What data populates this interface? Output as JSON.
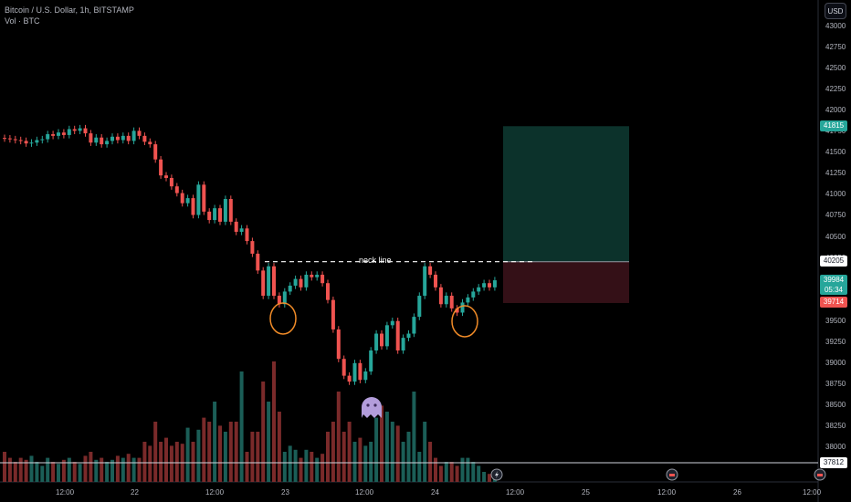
{
  "legend": {
    "title": "Bitcoin / U.S. Dollar, 1h, BITSTAMP",
    "volume": "Vol · BTC"
  },
  "currency": "USD",
  "annotation": "neck line",
  "colors": {
    "up": "#26a69a",
    "down": "#ef5350",
    "vol_up": "#1b5e57",
    "vol_down": "#7a2a2a",
    "target": "#0e3b33",
    "stop": "#3a1219",
    "marker": "#f28c28",
    "ghost": "#b39ddb"
  },
  "price_tags": {
    "target": "41815",
    "entry": "40205",
    "current_price": "39984",
    "countdown": "05:34",
    "stop": "39714",
    "volume_level": "37812"
  },
  "x_axis": [
    "12:00",
    "22",
    "12:00",
    "23",
    "12:00",
    "24",
    "12:00",
    "25",
    "12:00",
    "26",
    "12:00"
  ],
  "y_axis": [
    "43000",
    "42750",
    "42500",
    "42250",
    "42000",
    "41750",
    "41500",
    "41250",
    "41000",
    "40750",
    "40500",
    "40250",
    "40000",
    "39750",
    "39500",
    "39250",
    "39000",
    "38750",
    "38500",
    "38250",
    "38000"
  ],
  "chart_data": {
    "type": "candlestick",
    "title": "Bitcoin / U.S. Dollar, 1h, BITSTAMP",
    "interval": "1h",
    "ylim": [
      37750,
      43100
    ],
    "neckline": 40205,
    "position": {
      "target": 41815,
      "entry": 40205,
      "stop": 39714
    },
    "closes": [
      41670,
      41660,
      41650,
      41640,
      41610,
      41620,
      41650,
      41660,
      41720,
      41700,
      41740,
      41710,
      41780,
      41760,
      41790,
      41730,
      41620,
      41680,
      41600,
      41640,
      41690,
      41650,
      41700,
      41640,
      41760,
      41700,
      41630,
      41600,
      41420,
      41230,
      41200,
      41100,
      41020,
      40900,
      40960,
      40760,
      41120,
      40800,
      40700,
      40840,
      40680,
      40950,
      40680,
      40560,
      40600,
      40450,
      40300,
      40100,
      39800,
      40150,
      39800,
      39700,
      39850,
      39920,
      40000,
      39900,
      40050,
      40020,
      40050,
      39950,
      39750,
      39400,
      39050,
      38850,
      38780,
      39000,
      38800,
      38900,
      39150,
      39350,
      39200,
      39450,
      39500,
      39150,
      39300,
      39350,
      39550,
      39800,
      40150,
      40050,
      39900,
      39700,
      39800,
      39650,
      39600,
      39720,
      39780,
      39850,
      39900,
      39950,
      39900,
      39984
    ],
    "volumes": [
      0.15,
      0.12,
      0.1,
      0.12,
      0.11,
      0.13,
      0.1,
      0.08,
      0.12,
      0.1,
      0.09,
      0.11,
      0.12,
      0.1,
      0.09,
      0.13,
      0.15,
      0.11,
      0.12,
      0.1,
      0.11,
      0.13,
      0.12,
      0.14,
      0.12,
      0.12,
      0.2,
      0.18,
      0.3,
      0.2,
      0.22,
      0.18,
      0.2,
      0.19,
      0.27,
      0.2,
      0.26,
      0.32,
      0.3,
      0.4,
      0.28,
      0.25,
      0.3,
      0.3,
      0.55,
      0.15,
      0.25,
      0.25,
      0.5,
      0.4,
      0.6,
      0.35,
      0.15,
      0.18,
      0.16,
      0.12,
      0.16,
      0.15,
      0.12,
      0.14,
      0.25,
      0.3,
      0.45,
      0.25,
      0.3,
      0.2,
      0.22,
      0.18,
      0.2,
      0.32,
      0.38,
      0.35,
      0.3,
      0.28,
      0.2,
      0.25,
      0.45,
      0.15,
      0.3,
      0.2,
      0.12,
      0.08,
      0.1,
      0.1,
      0.08,
      0.12,
      0.12,
      0.1,
      0.08,
      0.05,
      0.04,
      0.03
    ]
  }
}
